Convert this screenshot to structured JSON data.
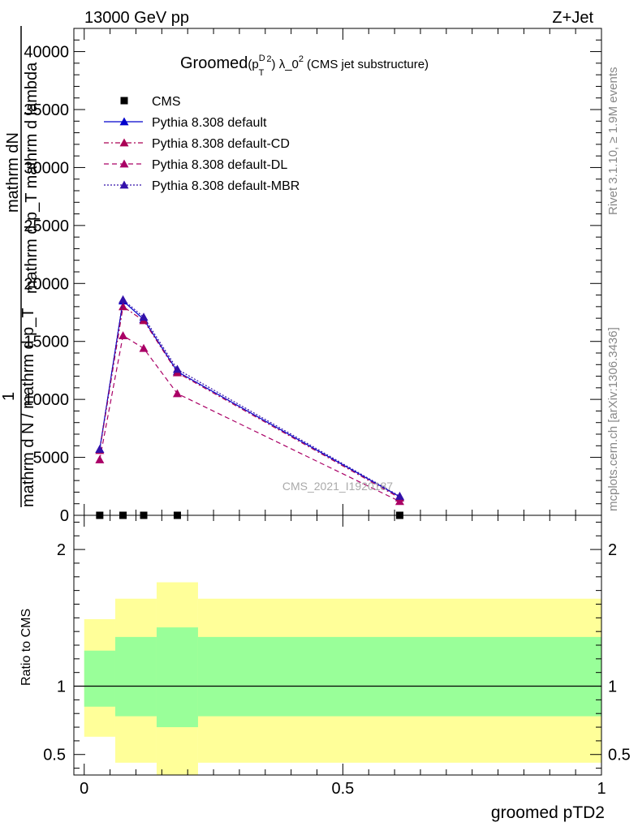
{
  "header": {
    "left": "13000 GeV pp",
    "right": "Z+Jet"
  },
  "side_labels": {
    "rivet": "Rivet 3.1.10, ≥ 1.9M events",
    "mcplots": "mcplots.cern.ch [arXiv:1306.3436]"
  },
  "main_panel": {
    "title_prefix": "Groomed",
    "title_formula": "(p",
    "title_sup_D": "D",
    "title_sub_T": "T",
    "title_sup_2": "2",
    "title_lambda": ") λ_0",
    "title_lambda_sup": "2",
    "title_suffix": "(CMS jet substructure)",
    "ylabel_numerator_top": "mathrm dN",
    "ylabel_numerator_bottom": "mathrm d p_T mathrm d lambda",
    "ylabel_fraction_one": "1",
    "ylabel_denominator": "mathrm d N / mathrm d p_T",
    "watermark": "CMS_2021_I1920187"
  },
  "ratio_panel": {
    "ylabel": "Ratio to CMS",
    "xlabel": "groomed pTD2"
  },
  "legend": [
    {
      "label": "CMS",
      "color": "#000000",
      "marker": "square",
      "dash": "none"
    },
    {
      "label": "Pythia 8.308 default",
      "color": "#0000cc",
      "marker": "triangle",
      "dash": "solid"
    },
    {
      "label": "Pythia 8.308 default-CD",
      "color": "#aa0055",
      "marker": "triangle",
      "dash": "dashdot"
    },
    {
      "label": "Pythia 8.308 default-DL",
      "color": "#aa0066",
      "marker": "triangle",
      "dash": "dashed"
    },
    {
      "label": "Pythia 8.308 default-MBR",
      "color": "#3311aa",
      "marker": "triangle",
      "dash": "dotted"
    }
  ],
  "chart_data": [
    {
      "type": "line",
      "x_range": [
        -0.02,
        1.0
      ],
      "ylim": [
        0,
        42000
      ],
      "y_ticks": [
        0,
        5000,
        10000,
        15000,
        20000,
        25000,
        30000,
        35000,
        40000
      ],
      "y_tick_labels": [
        "0",
        "5000",
        "10000",
        "15000",
        "20000",
        "25000",
        "30000",
        "35000",
        "40000"
      ],
      "legend_position": "top-left",
      "series": [
        {
          "name": "CMS",
          "x": [
            0.03,
            0.075,
            0.115,
            0.18,
            0.61
          ],
          "values": [
            0,
            0,
            0,
            0,
            0
          ],
          "color": "#000000",
          "marker": "square",
          "dash": "none"
        },
        {
          "name": "Pythia 8.308 default",
          "x": [
            0.03,
            0.075,
            0.115,
            0.18,
            0.61
          ],
          "values": [
            5700,
            18500,
            16900,
            12400,
            1600
          ],
          "color": "#0000cc",
          "marker": "triangle",
          "dash": "solid"
        },
        {
          "name": "Pythia 8.308 default-CD",
          "x": [
            0.03,
            0.075,
            0.115,
            0.18,
            0.61
          ],
          "values": [
            5600,
            18000,
            16800,
            12300,
            1500
          ],
          "color": "#aa0055",
          "marker": "triangle",
          "dash": "dashdot"
        },
        {
          "name": "Pythia 8.308 default-DL",
          "x": [
            0.03,
            0.075,
            0.115,
            0.18,
            0.61
          ],
          "values": [
            4800,
            15500,
            14400,
            10500,
            1200
          ],
          "color": "#aa0066",
          "marker": "triangle",
          "dash": "dashed"
        },
        {
          "name": "Pythia 8.308 default-MBR",
          "x": [
            0.03,
            0.075,
            0.115,
            0.18,
            0.61
          ],
          "values": [
            5700,
            18600,
            17100,
            12600,
            1650
          ],
          "color": "#3311aa",
          "marker": "triangle",
          "dash": "dotted"
        }
      ]
    },
    {
      "type": "area",
      "x_range": [
        -0.02,
        1.0
      ],
      "ylim": [
        0.35,
        2.25
      ],
      "y_ticks": [
        0.5,
        1,
        2
      ],
      "y_tick_labels": [
        "0.5",
        "1",
        "2"
      ],
      "x_ticks": [
        0,
        0.5,
        1
      ],
      "x_tick_labels": [
        "0",
        "0.5",
        "1"
      ],
      "reference_line": 1,
      "bins": [
        0.0,
        0.06,
        0.14,
        0.22,
        1.0
      ],
      "bands": [
        {
          "name": "outer",
          "color": "#ffff99",
          "low": [
            0.63,
            0.44,
            0.35,
            0.44
          ],
          "high": [
            1.49,
            1.64,
            1.76,
            1.64
          ]
        },
        {
          "name": "inner",
          "color": "#99ff99",
          "low": [
            0.85,
            0.78,
            0.7,
            0.78
          ],
          "high": [
            1.26,
            1.36,
            1.43,
            1.36
          ]
        }
      ]
    }
  ]
}
